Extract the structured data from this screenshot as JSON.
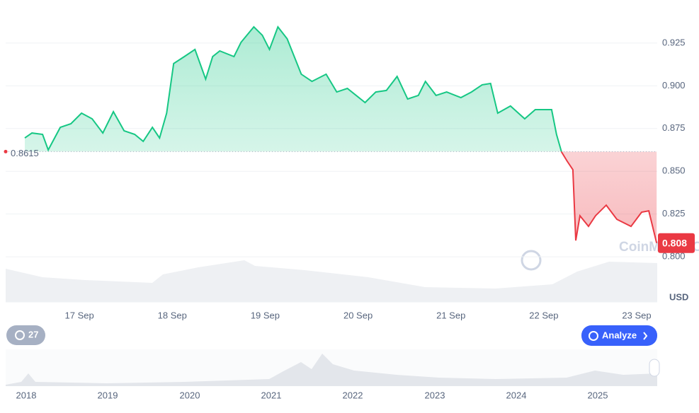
{
  "chart_data": {
    "type": "line",
    "x": [
      16.412,
      16.489,
      16.603,
      16.664,
      16.794,
      16.908,
      17.023,
      17.137,
      17.252,
      17.366,
      17.481,
      17.595,
      17.687,
      17.786,
      17.863,
      17.939,
      18.015,
      18.13,
      18.244,
      18.359,
      18.435,
      18.511,
      18.664,
      18.74,
      18.878,
      18.969,
      19.046,
      19.137,
      19.237,
      19.313,
      19.389,
      19.504,
      19.656,
      19.771,
      19.885,
      20.076,
      20.191,
      20.305,
      20.42,
      20.534,
      20.649,
      20.725,
      20.84,
      20.954,
      21.107,
      21.221,
      21.336,
      21.427,
      21.504,
      21.641,
      21.794,
      21.908,
      22.084,
      22.137,
      22.191,
      22.252,
      22.313,
      22.344,
      22.389,
      22.481,
      22.557,
      22.672,
      22.786,
      22.939,
      23.053,
      23.13,
      23.215
    ],
    "values": [
      0.8695,
      0.8724,
      0.8716,
      0.8625,
      0.8757,
      0.8778,
      0.884,
      0.8807,
      0.8724,
      0.8849,
      0.8737,
      0.8716,
      0.8675,
      0.8757,
      0.8695,
      0.884,
      0.913,
      0.9171,
      0.9213,
      0.9039,
      0.9171,
      0.9204,
      0.9171,
      0.9254,
      0.9345,
      0.9296,
      0.9213,
      0.9345,
      0.9275,
      0.9171,
      0.9068,
      0.9026,
      0.9068,
      0.8964,
      0.8985,
      0.8902,
      0.8964,
      0.8973,
      0.9055,
      0.8923,
      0.8944,
      0.9026,
      0.8944,
      0.8964,
      0.8931,
      0.8964,
      0.9006,
      0.9014,
      0.884,
      0.8882,
      0.8807,
      0.8861,
      0.8861,
      0.8716,
      0.8613,
      0.8559,
      0.8509,
      0.8095,
      0.824,
      0.8178,
      0.824,
      0.8302,
      0.8219,
      0.8178,
      0.8261,
      0.8269,
      0.808
    ],
    "baseline": 0.8615,
    "last_price": 0.808,
    "up_color": "#16c784",
    "down_color": "#ea3943",
    "xlim": [
      16.206,
      23.221
    ],
    "xticks": [
      {
        "value": 17,
        "label": "17 Sep"
      },
      {
        "value": 18,
        "label": "18 Sep"
      },
      {
        "value": 19,
        "label": "19 Sep"
      },
      {
        "value": 20,
        "label": "20 Sep"
      },
      {
        "value": 21,
        "label": "21 Sep"
      },
      {
        "value": 22,
        "label": "22 Sep"
      },
      {
        "value": 23,
        "label": "23 Sep"
      }
    ],
    "ylim": [
      0.7748,
      0.9502
    ],
    "yticks": [
      {
        "value": 0.8,
        "label": "0.800"
      },
      0.825,
      {
        "value": 0.85,
        "label": "0.850"
      },
      0.875,
      {
        "value": 0.9,
        "label": "0.900"
      },
      0.925
    ],
    "y_unit": "USD",
    "grid": true,
    "watermark": "CoinMarketCap",
    "badge": "27",
    "button": "Analyze",
    "navigator_labels": [
      "2018",
      "2019",
      "2020",
      "2021",
      "2022",
      "2023",
      "2024",
      "2025"
    ]
  }
}
